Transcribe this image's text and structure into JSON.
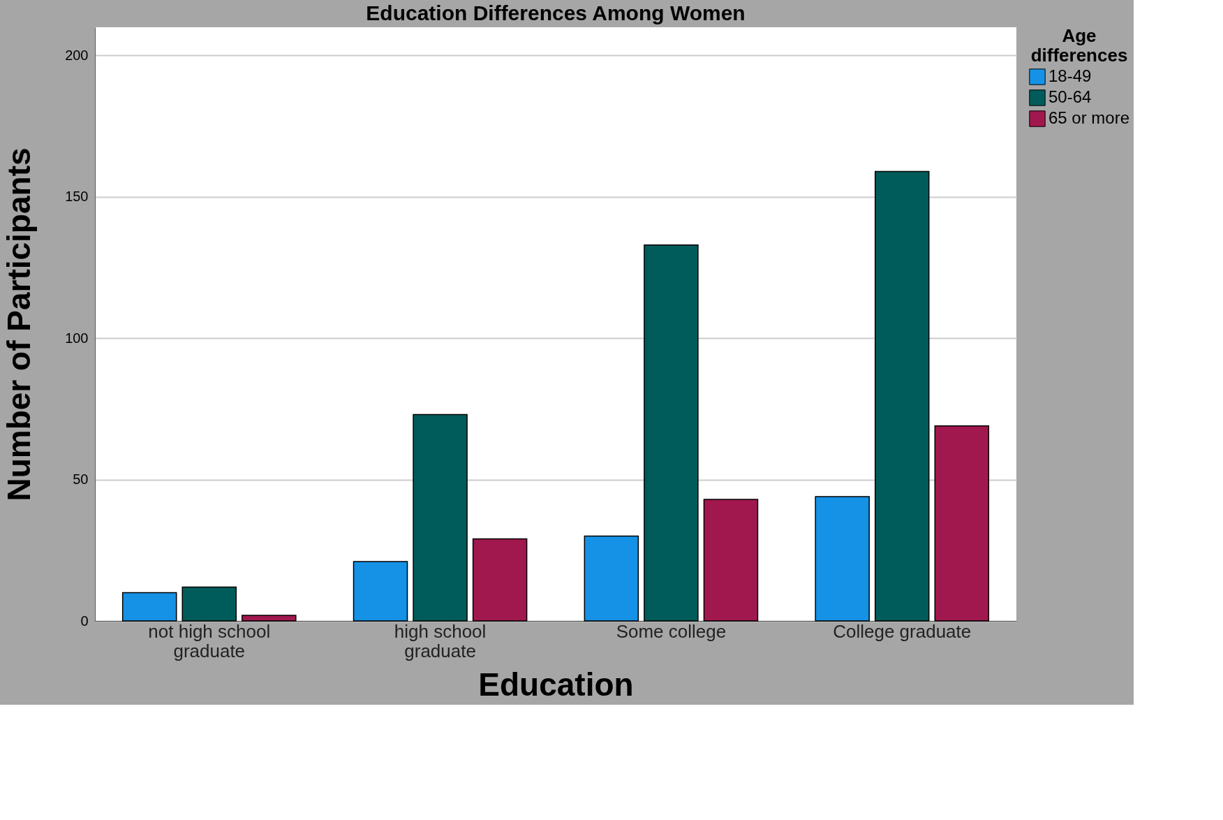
{
  "chart_data": {
    "type": "bar",
    "title": "Education Differences Among Women",
    "xlabel": "Education",
    "ylabel": "Number of Participants",
    "legend_title": "Age differences",
    "categories": [
      "not high school graduate",
      "high school graduate",
      "Some college",
      "College graduate"
    ],
    "series": [
      {
        "name": "18-49",
        "color": "#1592e6",
        "values": [
          10,
          21,
          30,
          44
        ]
      },
      {
        "name": "50-64",
        "color": "#005c5a",
        "values": [
          12,
          73,
          133,
          159
        ]
      },
      {
        "name": "65 or more",
        "color": "#a0184e",
        "values": [
          2,
          29,
          43,
          69
        ]
      }
    ],
    "ylim": [
      0,
      210
    ],
    "yticks": [
      0,
      50,
      100,
      150,
      200
    ],
    "grid": "y",
    "legend": "top right"
  }
}
